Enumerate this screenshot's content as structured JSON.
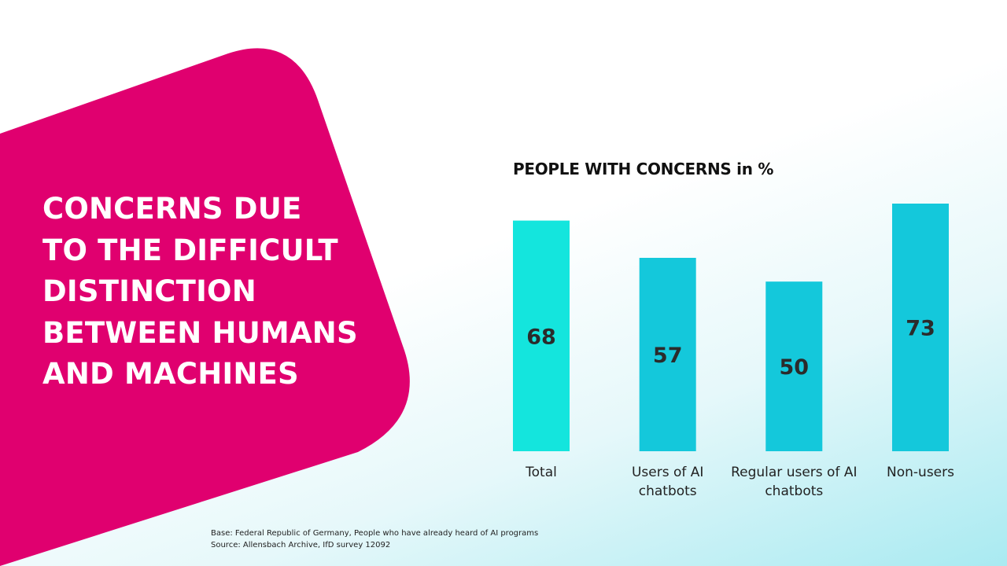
{
  "headline": {
    "lines": [
      "CONCERNS DUE",
      "TO THE DIFFICULT",
      "DISTINCTION",
      "BETWEEN HUMANS",
      "AND MACHINES"
    ]
  },
  "footnote": {
    "base": "Base: Federal Republic of Germany, People who have already heard of AI programs",
    "source": "Source: Allensbach Archive, IfD survey 12092"
  },
  "colors": {
    "magenta": "#e0006f",
    "bar_total": "#14e5dd",
    "bar_other": "#14c8db"
  },
  "chart_data": {
    "type": "bar",
    "title": "PEOPLE WITH CONCERNS in %",
    "categories": [
      [
        "Total"
      ],
      [
        "Users of AI",
        "chatbots"
      ],
      [
        "Regular users of AI",
        "chatbots"
      ],
      [
        "Non-users"
      ]
    ],
    "values": [
      68,
      57,
      50,
      73
    ],
    "ylim": [
      0,
      100
    ],
    "grid": false,
    "legend": "none"
  }
}
